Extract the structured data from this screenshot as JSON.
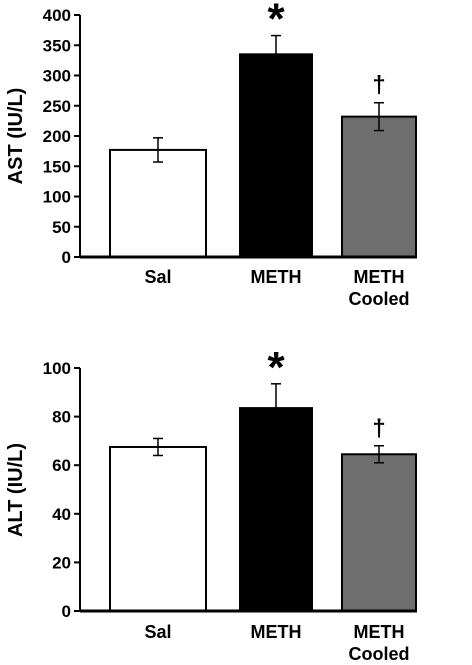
{
  "chart_data": [
    {
      "type": "bar",
      "ylabel": "AST (IU/L)",
      "ylim": [
        0,
        400
      ],
      "yticks": [
        0,
        50,
        100,
        150,
        200,
        250,
        300,
        350,
        400
      ],
      "categories": [
        [
          "Sal"
        ],
        [
          "METH"
        ],
        [
          "METH",
          "Cooled"
        ]
      ],
      "values": [
        177,
        335,
        232
      ],
      "errors": [
        20,
        31,
        23
      ],
      "bar_colors": [
        "#ffffff",
        "#000000",
        "#6e6e6e"
      ],
      "annotations": [
        "",
        "*",
        "†"
      ],
      "grid": false
    },
    {
      "type": "bar",
      "ylabel": "ALT (IU/L)",
      "ylim": [
        0,
        100
      ],
      "yticks": [
        0,
        20,
        40,
        60,
        80,
        100
      ],
      "categories": [
        [
          "Sal"
        ],
        [
          "METH"
        ],
        [
          "METH",
          "Cooled"
        ]
      ],
      "values": [
        67.5,
        83.5,
        64.5
      ],
      "errors": [
        3.5,
        10,
        3.5
      ],
      "bar_colors": [
        "#ffffff",
        "#000000",
        "#6e6e6e"
      ],
      "annotations": [
        "",
        "*",
        "†"
      ],
      "grid": false
    }
  ]
}
